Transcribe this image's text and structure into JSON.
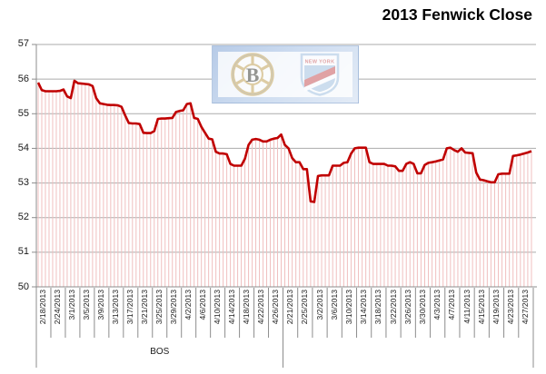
{
  "chart_data": {
    "type": "line",
    "title": "2013 Fenwick Close",
    "ylim": [
      50,
      57
    ],
    "yticks": [
      50,
      51,
      52,
      53,
      54,
      55,
      56,
      57
    ],
    "grid": true,
    "legend": "none",
    "line_color": "#C00000",
    "dropline_color": "#F0BFBF",
    "gridline_color": "#ABABAB",
    "axis_color": "#8C8C8C",
    "points_per_label": 4,
    "groups": [
      {
        "team": "BOS",
        "tick_labels": [
          "2/18/2013",
          "2/24/2013",
          "3/1/2013",
          "3/5/2013",
          "3/9/2013",
          "3/13/2013",
          "3/17/2013",
          "3/21/2013",
          "3/25/2013",
          "3/29/2013",
          "4/2/2013",
          "4/6/2013",
          "4/10/2013",
          "4/14/2013",
          "4/18/2013",
          "4/22/2013",
          "4/26/2013"
        ],
        "values": [
          55.9,
          55.68,
          55.65,
          55.65,
          55.65,
          55.65,
          55.66,
          55.7,
          55.5,
          55.45,
          55.95,
          55.88,
          55.87,
          55.86,
          55.85,
          55.8,
          55.45,
          55.3,
          55.28,
          55.26,
          55.25,
          55.25,
          55.24,
          55.2,
          54.95,
          54.73,
          54.72,
          54.72,
          54.7,
          54.45,
          54.44,
          54.44,
          54.5,
          54.85,
          54.86,
          54.86,
          54.87,
          54.88,
          55.05,
          55.08,
          55.1,
          55.28,
          55.3,
          54.88,
          54.85,
          54.62,
          54.45,
          54.28,
          54.26,
          53.9,
          53.85,
          53.85,
          53.83,
          53.55,
          53.5,
          53.5,
          53.5,
          53.7,
          54.1,
          54.25,
          54.27,
          54.25,
          54.2,
          54.2,
          54.25,
          54.28,
          54.3,
          54.4
        ]
      },
      {
        "team": "",
        "tick_labels": [
          "2/21/2013",
          "2/25/2013",
          "3/2/2013",
          "3/6/2013",
          "3/10/2013",
          "3/14/2013",
          "3/18/2013",
          "3/22/2013",
          "3/26/2013",
          "3/30/2013",
          "4/3/2013",
          "4/7/2013",
          "4/11/2013",
          "4/15/2013",
          "4/19/2013",
          "4/23/2013",
          "4/27/2013"
        ],
        "values": [
          54.1,
          54.0,
          53.72,
          53.6,
          53.6,
          53.4,
          53.4,
          52.47,
          52.45,
          53.2,
          53.22,
          53.22,
          53.22,
          53.5,
          53.5,
          53.5,
          53.58,
          53.6,
          53.85,
          54.0,
          54.02,
          54.02,
          54.02,
          53.6,
          53.55,
          53.55,
          53.55,
          53.55,
          53.5,
          53.5,
          53.48,
          53.35,
          53.35,
          53.55,
          53.6,
          53.55,
          53.28,
          53.28,
          53.52,
          53.58,
          53.6,
          53.62,
          53.65,
          53.68,
          54.0,
          54.02,
          53.95,
          53.9,
          54.0,
          53.88,
          53.87,
          53.86,
          53.3,
          53.1,
          53.08,
          53.05,
          53.02,
          53.02,
          53.25,
          53.27,
          53.27,
          53.27,
          53.78,
          53.8,
          53.82,
          53.85,
          53.88,
          53.92
        ]
      }
    ]
  },
  "logos": {
    "left": "boston-bruins-logo",
    "right": "new-york-rangers-logo",
    "bruins_gold": "#C9A85C",
    "bruins_black": "#45453C",
    "rangers_blue": "#A9C6E2",
    "rangers_red": "#CE5C5C"
  }
}
